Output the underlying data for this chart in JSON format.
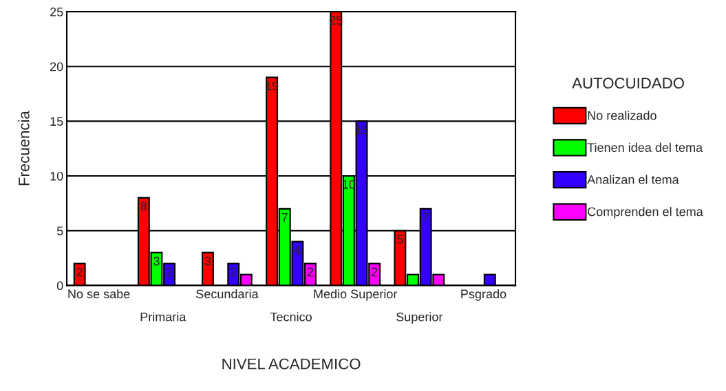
{
  "chart_data": {
    "type": "bar",
    "xlabel": "NIVEL ACADEMICO",
    "ylabel": "Frecuencia",
    "legend_title": "AUTOCUIDADO",
    "categories": [
      "No se sabe",
      "Primaria",
      "Secundaria",
      "Tecnico",
      "Medio Superior",
      "Superior",
      "Psgrado"
    ],
    "series": [
      {
        "name": "No realizado",
        "color": "#ff0000",
        "values": [
          2,
          8,
          3,
          19,
          25,
          5,
          null
        ],
        "value_labels": [
          "2",
          "8",
          "3",
          "19",
          "25",
          "5",
          null
        ]
      },
      {
        "name": "Tienen idea del tema",
        "color": "#00ff00",
        "values": [
          null,
          3,
          null,
          7,
          10,
          1,
          null
        ],
        "value_labels": [
          null,
          "3",
          null,
          "7",
          "10",
          null,
          null
        ]
      },
      {
        "name": "Analizan el tema",
        "color": "#3300ff",
        "values": [
          null,
          2,
          2,
          4,
          15,
          7,
          1
        ],
        "value_labels": [
          null,
          "2",
          "2",
          "4",
          "15",
          "7",
          null
        ]
      },
      {
        "name": "Comprenden el tema",
        "color": "#ff00ff",
        "values": [
          null,
          null,
          1,
          2,
          2,
          1,
          null
        ],
        "value_labels": [
          null,
          null,
          null,
          "2",
          "2",
          null,
          null
        ]
      }
    ],
    "ylim": [
      0,
      25
    ],
    "yticks": [
      0,
      5,
      10,
      15,
      20,
      25
    ],
    "grid": "y",
    "legend": "right"
  }
}
